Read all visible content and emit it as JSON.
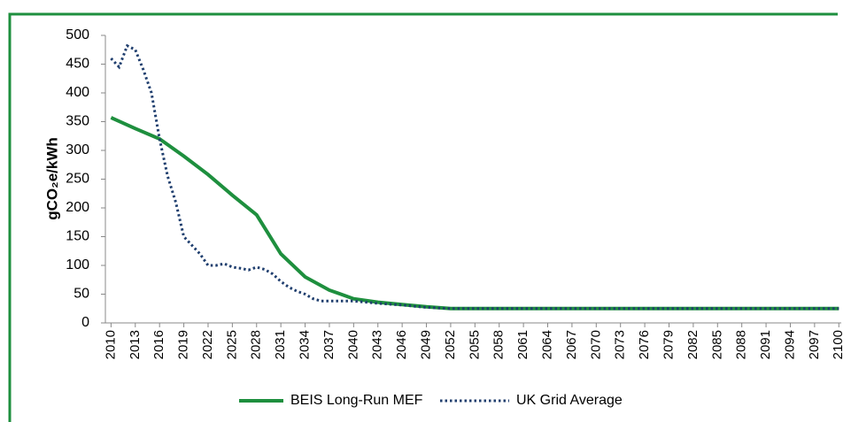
{
  "chart_data": {
    "type": "line",
    "ylabel": "gCO₂e/kWh",
    "xlim": [
      2009.3,
      2100.3
    ],
    "xticks": [
      2010,
      2013,
      2016,
      2019,
      2022,
      2025,
      2028,
      2031,
      2034,
      2037,
      2040,
      2043,
      2046,
      2049,
      2052,
      2055,
      2058,
      2061,
      2064,
      2067,
      2070,
      2073,
      2076,
      2079,
      2082,
      2085,
      2088,
      2091,
      2094,
      2097,
      2100
    ],
    "ylim": [
      0,
      500
    ],
    "yticks": [
      0,
      50,
      100,
      150,
      200,
      250,
      300,
      350,
      400,
      450,
      500
    ],
    "legend": "bottom",
    "series": [
      {
        "name": "BEIS Long-Run MEF",
        "color": "#1e8f3e",
        "style": "solid",
        "x": [
          2010,
          2013,
          2016,
          2019,
          2022,
          2025,
          2028,
          2031,
          2034,
          2037,
          2040,
          2043,
          2046,
          2049,
          2052,
          2100
        ],
        "values": [
          357,
          338,
          320,
          290,
          258,
          222,
          188,
          120,
          80,
          57,
          42,
          36,
          32,
          28,
          25,
          25
        ]
      },
      {
        "name": "UK Grid Average",
        "color": "#1f3e6e",
        "style": "dotted",
        "x": [
          2010,
          2011,
          2012,
          2013,
          2014,
          2015,
          2016,
          2017,
          2018,
          2019,
          2020,
          2021,
          2022,
          2023,
          2024,
          2025,
          2026,
          2027,
          2028,
          2029,
          2030,
          2031,
          2032,
          2033,
          2034,
          2035,
          2036,
          2037,
          2040,
          2043,
          2046,
          2049,
          2052,
          2100
        ],
        "values": [
          460,
          445,
          482,
          475,
          440,
          400,
          320,
          255,
          210,
          150,
          135,
          120,
          100,
          100,
          103,
          97,
          95,
          92,
          97,
          93,
          85,
          72,
          62,
          55,
          50,
          42,
          38,
          38,
          38,
          34,
          31,
          27,
          25,
          25
        ]
      }
    ]
  }
}
